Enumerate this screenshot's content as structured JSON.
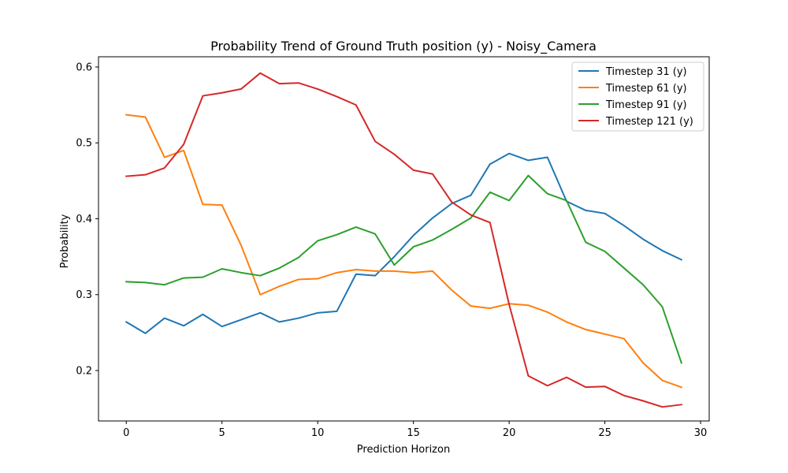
{
  "chart_data": {
    "type": "line",
    "title": "Probability Trend of Ground Truth position (y) - Noisy_Camera",
    "xlabel": "Prediction Horizon",
    "ylabel": "Probability",
    "xlim": [
      -1.45,
      30.45
    ],
    "ylim": [
      0.1335,
      0.6135
    ],
    "xticks": [
      0,
      5,
      10,
      15,
      20,
      25,
      30
    ],
    "yticks": [
      0.2,
      0.3,
      0.4,
      0.5,
      0.6
    ],
    "grid": false,
    "legend_position": "upper right",
    "x": [
      0,
      1,
      2,
      3,
      4,
      5,
      6,
      7,
      8,
      9,
      10,
      11,
      12,
      13,
      14,
      15,
      16,
      17,
      18,
      19,
      20,
      21,
      22,
      23,
      24,
      25,
      26,
      27,
      28,
      29
    ],
    "series": [
      {
        "name": "Timestep 31 (y)",
        "color": "#1f77b4",
        "values": [
          0.264,
          0.249,
          0.269,
          0.259,
          0.274,
          0.258,
          0.267,
          0.276,
          0.264,
          0.269,
          0.276,
          0.278,
          0.327,
          0.325,
          0.35,
          0.378,
          0.401,
          0.42,
          0.431,
          0.472,
          0.486,
          0.477,
          0.481,
          0.423,
          0.411,
          0.407,
          0.391,
          0.373,
          0.358,
          0.346
        ]
      },
      {
        "name": "Timestep 61 (y)",
        "color": "#ff7f0e",
        "values": [
          0.537,
          0.534,
          0.481,
          0.49,
          0.419,
          0.418,
          0.365,
          0.3,
          0.311,
          0.32,
          0.321,
          0.329,
          0.333,
          0.331,
          0.331,
          0.329,
          0.331,
          0.306,
          0.285,
          0.282,
          0.288,
          0.286,
          0.277,
          0.264,
          0.254,
          0.248,
          0.242,
          0.21,
          0.187,
          0.178
        ]
      },
      {
        "name": "Timestep 91 (y)",
        "color": "#2ca02c",
        "values": [
          0.317,
          0.316,
          0.313,
          0.322,
          0.323,
          0.334,
          0.329,
          0.325,
          0.335,
          0.349,
          0.371,
          0.379,
          0.389,
          0.38,
          0.339,
          0.363,
          0.372,
          0.386,
          0.401,
          0.435,
          0.424,
          0.457,
          0.433,
          0.424,
          0.369,
          0.357,
          0.335,
          0.313,
          0.284,
          0.21
        ]
      },
      {
        "name": "Timestep 121 (y)",
        "color": "#d62728",
        "values": [
          0.456,
          0.458,
          0.467,
          0.498,
          0.562,
          0.566,
          0.571,
          0.592,
          0.578,
          0.579,
          0.571,
          0.561,
          0.55,
          0.502,
          0.485,
          0.464,
          0.459,
          0.422,
          0.405,
          0.395,
          0.287,
          0.193,
          0.18,
          0.191,
          0.178,
          0.179,
          0.167,
          0.16,
          0.152,
          0.155
        ]
      }
    ]
  }
}
